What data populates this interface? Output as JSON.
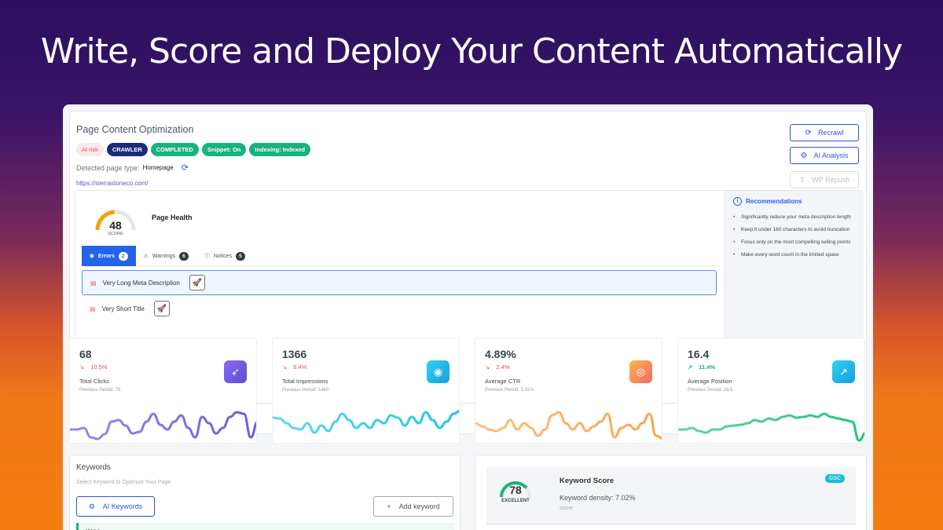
{
  "hero": {
    "title": "Write, Score and Deploy Your Content Automatically"
  },
  "optimization": {
    "title": "Page Content Optimization",
    "badges": [
      "At risk",
      "CRAWLER",
      "COMPLETED",
      "Snippet: On",
      "Indexing: Indexed"
    ],
    "page_type_label": "Detected page type:",
    "page_type_value": "Homepage",
    "url": "https://sierrastoneco.com/",
    "actions": {
      "recrawl": "Recrawl",
      "ai_analysis": "AI Analysis",
      "wp_repush": "WP Repush"
    }
  },
  "health": {
    "score": "48",
    "score_label": "SCORE",
    "score_value": 48,
    "title": "Page Health",
    "tabs": [
      {
        "label": "Errors",
        "count": "2"
      },
      {
        "label": "Warnings",
        "count": "6"
      },
      {
        "label": "Notices",
        "count": "5"
      }
    ],
    "issues": [
      "Very Long Meta Description",
      "Very Short Title"
    ]
  },
  "recommendations": {
    "title": "Recommendations",
    "items": [
      "Significantly reduce your meta description length",
      "Keep it under 160 characters to avoid truncation",
      "Focus only on the most compelling selling points",
      "Make every word count in the limited space"
    ]
  },
  "metrics": [
    {
      "value": "68",
      "change": "10.5%",
      "direction": "down",
      "label": "Total Clicks",
      "previous": "Previous Period: 76",
      "icon": "cursor-icon",
      "color": "#6b5be0",
      "spark": [
        30,
        30,
        28,
        40,
        42,
        36,
        20,
        18,
        25,
        35,
        33,
        20,
        10,
        24,
        30,
        20,
        12,
        28,
        40,
        14,
        22,
        35,
        28,
        14,
        8,
        10,
        40,
        20
      ]
    },
    {
      "value": "1366",
      "change": "6.4%",
      "direction": "down",
      "label": "Total Impressions",
      "previous": "Previous Period: 1460",
      "icon": "eye-icon",
      "color": "#1ac8e6",
      "spark": [
        15,
        16,
        22,
        28,
        30,
        22,
        34,
        25,
        32,
        20,
        10,
        18,
        28,
        22,
        28,
        18,
        22,
        12,
        15,
        25,
        14,
        22,
        8,
        18,
        28,
        20,
        10,
        6
      ]
    },
    {
      "value": "4.89%",
      "change": "2.4%",
      "direction": "down",
      "label": "Average CTR",
      "previous": "Previous Period: 5.01%",
      "icon": "target-icon",
      "color": "#ffa24a",
      "spark": [
        22,
        26,
        30,
        32,
        28,
        18,
        30,
        22,
        28,
        38,
        30,
        12,
        8,
        22,
        30,
        22,
        32,
        26,
        20,
        10,
        40,
        28,
        24,
        30,
        22,
        10,
        38,
        42
      ]
    },
    {
      "value": "16.4",
      "change": "11.4%",
      "direction": "up",
      "label": "Average Position",
      "previous": "Previous Period: 18.5",
      "icon": "trending-up-icon",
      "color": "#22c27a",
      "spark": [
        30,
        30,
        28,
        32,
        34,
        30,
        30,
        26,
        25,
        24,
        22,
        18,
        20,
        16,
        18,
        14,
        12,
        15,
        14,
        12,
        14,
        10,
        14,
        16,
        18,
        20,
        44,
        34
      ]
    }
  ],
  "keywords": {
    "title": "Keywords",
    "subtitle": "Select Keyword to Optimize Your Page",
    "ai_button": "AI Keywords",
    "add_button": "Add keyword",
    "row_keyword": "stone"
  },
  "keyword_score": {
    "score": "78",
    "score_value": 78,
    "rating": "EXCELLENT",
    "title": "Keyword Score",
    "density": "Keyword density: 7.02%",
    "keyword": "stone",
    "badge": "GSC"
  }
}
